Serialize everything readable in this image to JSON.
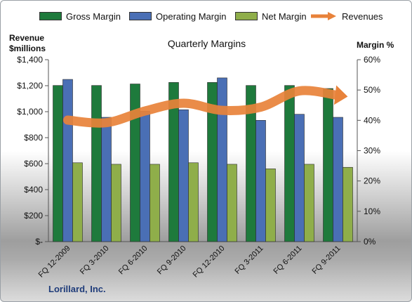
{
  "chart_data": {
    "type": "bar",
    "title": "Quarterly Margins",
    "company": "Lorillard, Inc.",
    "y_left_label": [
      "Revenue",
      "$millions"
    ],
    "y_right_label": "Margin %",
    "y_left_ticks": [
      "$-",
      "$200",
      "$400",
      "$600",
      "$800",
      "$1,000",
      "$1,200",
      "$1,400"
    ],
    "y_right_ticks": [
      "0%",
      "10%",
      "20%",
      "30%",
      "40%",
      "50%",
      "60%"
    ],
    "y_left_lim": [
      0,
      1400
    ],
    "y_right_lim": [
      0,
      60
    ],
    "categories": [
      "FQ 12-2009",
      "FQ 3-2010",
      "FQ 6-2010",
      "FQ 9-2010",
      "FQ 12-2010",
      "FQ 3-2011",
      "FQ 6-2011",
      "FQ 9-2011"
    ],
    "legend_position": "top",
    "series": [
      {
        "name": "Gross Margin",
        "axis": "right",
        "kind": "bar",
        "color": "#1e7a3c",
        "values": [
          51.5,
          51.5,
          52,
          52.5,
          52.5,
          51.5,
          51.5,
          50.5
        ]
      },
      {
        "name": "Operating Margin",
        "axis": "right",
        "kind": "bar",
        "color": "#4a6fb5",
        "values": [
          53.5,
          41,
          43,
          43.5,
          54,
          40,
          42,
          41
        ]
      },
      {
        "name": "Net Margin",
        "axis": "right",
        "kind": "bar",
        "color": "#8fae4a",
        "values": [
          26,
          25.5,
          25.5,
          26,
          25.5,
          24,
          25.5,
          24.5
        ]
      },
      {
        "name": "Revenues",
        "axis": "left",
        "kind": "line",
        "color": "#e8823a",
        "values": [
          935,
          915,
          1005,
          1065,
          1010,
          1035,
          1160,
          1125
        ]
      }
    ]
  }
}
